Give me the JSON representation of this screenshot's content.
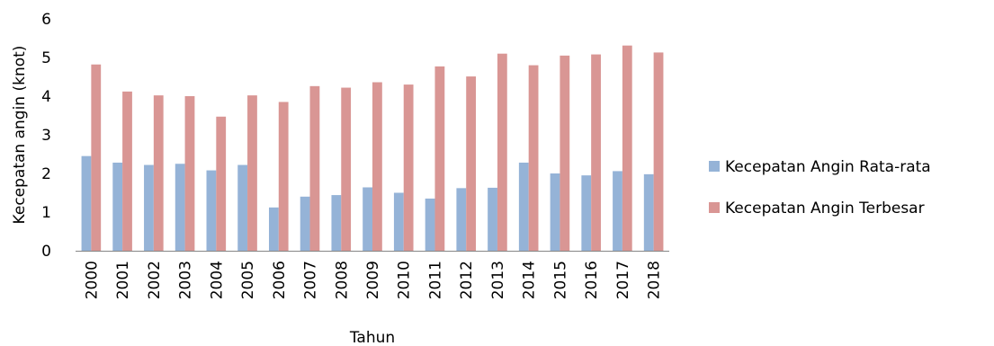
{
  "chart_data": {
    "type": "bar",
    "xlabel": "Tahun",
    "ylabel": "Kecepatan angin (knot)",
    "ylim": [
      0,
      6
    ],
    "yticks": [
      "0",
      "1",
      "2",
      "3",
      "4",
      "5",
      "6"
    ],
    "grid": false,
    "legend_position": "right",
    "categories": [
      "2000",
      "2001",
      "2002",
      "2003",
      "2004",
      "2005",
      "2006",
      "2007",
      "2008",
      "2009",
      "2010",
      "2011",
      "2012",
      "2013",
      "2014",
      "2015",
      "2016",
      "2017",
      "2018"
    ],
    "series": [
      {
        "name": "Kecepatan Angin Rata-rata",
        "color": "#95b3d7",
        "values": [
          2.45,
          2.28,
          2.22,
          2.25,
          2.08,
          2.22,
          1.12,
          1.4,
          1.44,
          1.64,
          1.5,
          1.35,
          1.62,
          1.63,
          2.28,
          2.0,
          1.95,
          2.06,
          1.98
        ]
      },
      {
        "name": "Kecepatan Angin Terbesar",
        "color": "#d99694",
        "values": [
          4.82,
          4.12,
          4.02,
          4.0,
          3.47,
          4.02,
          3.85,
          4.26,
          4.22,
          4.36,
          4.3,
          4.77,
          4.51,
          5.1,
          4.8,
          5.05,
          5.08,
          5.31,
          5.13
        ]
      }
    ]
  }
}
